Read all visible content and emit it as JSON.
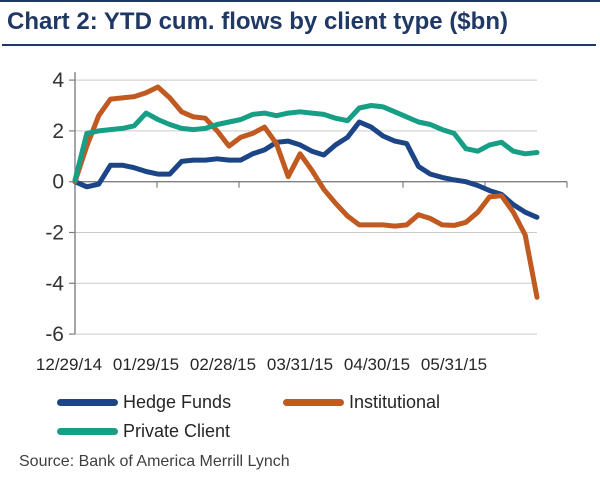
{
  "page": {
    "source": "Source: Bank of America Merrill Lynch"
  },
  "colors": {
    "title_navy": "#1f3864",
    "gridline": "#c9c9c9",
    "axis_line": "#7f7f7f",
    "tick_text": "#333333",
    "legend_text": "#262626"
  },
  "chart_data": {
    "type": "line",
    "title": "Chart 2: YTD cum. flows by client type ($bn)",
    "xlabel": "",
    "ylabel": "",
    "ylim": [
      -6,
      4
    ],
    "y_ticks": [
      4,
      2,
      0,
      -2,
      -4,
      -6
    ],
    "x_tick_labels": [
      "12/29/14",
      "01/29/15",
      "02/28/15",
      "03/31/15",
      "04/30/15",
      "05/31/15"
    ],
    "grid": true,
    "legend_position": "bottom",
    "series": [
      {
        "name": "Hedge Funds",
        "color": "#1c4587",
        "values": [
          0.0,
          -0.2,
          -0.1,
          0.65,
          0.65,
          0.55,
          0.4,
          0.3,
          0.3,
          0.8,
          0.85,
          0.85,
          0.9,
          0.85,
          0.85,
          1.1,
          1.25,
          1.55,
          1.6,
          1.45,
          1.2,
          1.05,
          1.45,
          1.75,
          2.35,
          2.15,
          1.8,
          1.6,
          1.5,
          0.6,
          0.3,
          0.17,
          0.07,
          0.0,
          -0.15,
          -0.35,
          -0.5,
          -0.9,
          -1.2,
          -1.4
        ]
      },
      {
        "name": "Institutional",
        "color": "#c05a21",
        "values": [
          0.0,
          1.4,
          2.6,
          3.25,
          3.3,
          3.35,
          3.5,
          3.73,
          3.3,
          2.75,
          2.55,
          2.5,
          2.0,
          1.4,
          1.75,
          1.9,
          2.15,
          1.5,
          0.2,
          1.1,
          0.45,
          -0.3,
          -0.85,
          -1.35,
          -1.7,
          -1.7,
          -1.7,
          -1.75,
          -1.7,
          -1.3,
          -1.45,
          -1.7,
          -1.72,
          -1.6,
          -1.2,
          -0.6,
          -0.55,
          -1.2,
          -2.1,
          -4.55
        ]
      },
      {
        "name": "Private Client",
        "color": "#169f85",
        "values": [
          0.05,
          1.9,
          2.0,
          2.05,
          2.1,
          2.2,
          2.7,
          2.45,
          2.25,
          2.1,
          2.05,
          2.1,
          2.25,
          2.35,
          2.45,
          2.65,
          2.7,
          2.6,
          2.7,
          2.75,
          2.7,
          2.65,
          2.5,
          2.4,
          2.9,
          3.0,
          2.95,
          2.75,
          2.55,
          2.35,
          2.25,
          2.05,
          1.9,
          1.3,
          1.2,
          1.45,
          1.55,
          1.2,
          1.1,
          1.15
        ]
      }
    ]
  }
}
